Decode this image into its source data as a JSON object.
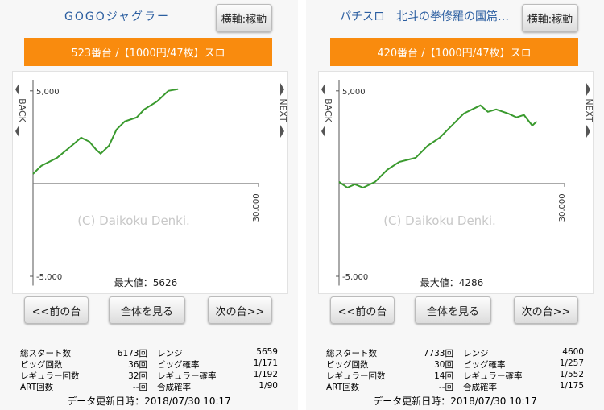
{
  "panels": [
    {
      "title": "GOGOジャグラー",
      "axis_button": "横軸:稼動",
      "banner": "523番台 /【1000円/47枚】スロ",
      "chart": {
        "type": "line",
        "color": "#3a9a2e",
        "x": [
          0,
          1100,
          3200,
          5400,
          6400,
          7500,
          8400,
          9000,
          10100,
          11100,
          12200,
          13800,
          14800,
          16500,
          18000,
          19300
        ],
        "values": [
          520,
          960,
          1390,
          2130,
          2480,
          2260,
          1830,
          1610,
          2040,
          2910,
          3350,
          3570,
          4000,
          4430,
          5000,
          5090
        ],
        "xlim": [
          0,
          30000
        ],
        "ylim": [
          -5500,
          5600
        ],
        "yticks": [
          {
            "value": 5000,
            "label": "5,000"
          },
          {
            "value": -5000,
            "label": "-5,000"
          }
        ],
        "xticks": [
          {
            "value": 30000,
            "label": "30,000"
          }
        ]
      },
      "watermark": "(C) Daikoku Denki.",
      "back": "BACK",
      "next": "NEXT",
      "max_label": "最大値：5626",
      "nav": [
        "<<前の台",
        "全体を見る",
        "次の台>>"
      ],
      "stats": [
        [
          "総スタート数",
          "6173回",
          "レンジ",
          "5659"
        ],
        [
          "ビッグ回数",
          "36回",
          "ビッグ確率",
          "1/171"
        ],
        [
          "レギュラー回数",
          "32回",
          "レギュラー確率",
          "1/192"
        ],
        [
          "ART回数",
          "--回",
          "合成確率",
          "1/90"
        ]
      ],
      "updated": "データ更新日時：2018/07/30 10:17"
    },
    {
      "title": "パチスロ　北斗の拳修羅の国篇…",
      "axis_button": "横軸:稼動",
      "banner": "420番台 /【1000円/47枚】スロ",
      "chart": {
        "type": "line",
        "color": "#3a9a2e",
        "x": [
          0,
          1100,
          2100,
          3200,
          4800,
          6400,
          8000,
          10200,
          11800,
          13400,
          15000,
          16600,
          17700,
          18800,
          19800,
          20900,
          22500,
          23600,
          24600,
          25700,
          26300
        ],
        "values": [
          90,
          -220,
          -40,
          -220,
          90,
          740,
          1170,
          1390,
          2040,
          2480,
          3130,
          3780,
          4000,
          4220,
          3870,
          4000,
          3780,
          3570,
          3700,
          3130,
          3350
        ],
        "xlim": [
          0,
          30000
        ],
        "ylim": [
          -5500,
          5600
        ],
        "yticks": [
          {
            "value": 5000,
            "label": "5,000"
          },
          {
            "value": -5000,
            "label": "-5,000"
          }
        ],
        "xticks": [
          {
            "value": 30000,
            "label": "30,000"
          }
        ]
      },
      "watermark": "(C) Daikoku Denki.",
      "back": "BACK",
      "next": "NEXT",
      "max_label": "最大値：4286",
      "nav": [
        "<<前の台",
        "全体を見る",
        "次の台>>"
      ],
      "stats": [
        [
          "総スタート数",
          "7733回",
          "レンジ",
          "4600"
        ],
        [
          "ビッグ回数",
          "30回",
          "ビッグ確率",
          "1/257"
        ],
        [
          "レギュラー回数",
          "14回",
          "レギュラー確率",
          "1/552"
        ],
        [
          "ART回数",
          "--回",
          "合成確率",
          "1/175"
        ]
      ],
      "updated": "データ更新日時：2018/07/30 10:17"
    }
  ]
}
